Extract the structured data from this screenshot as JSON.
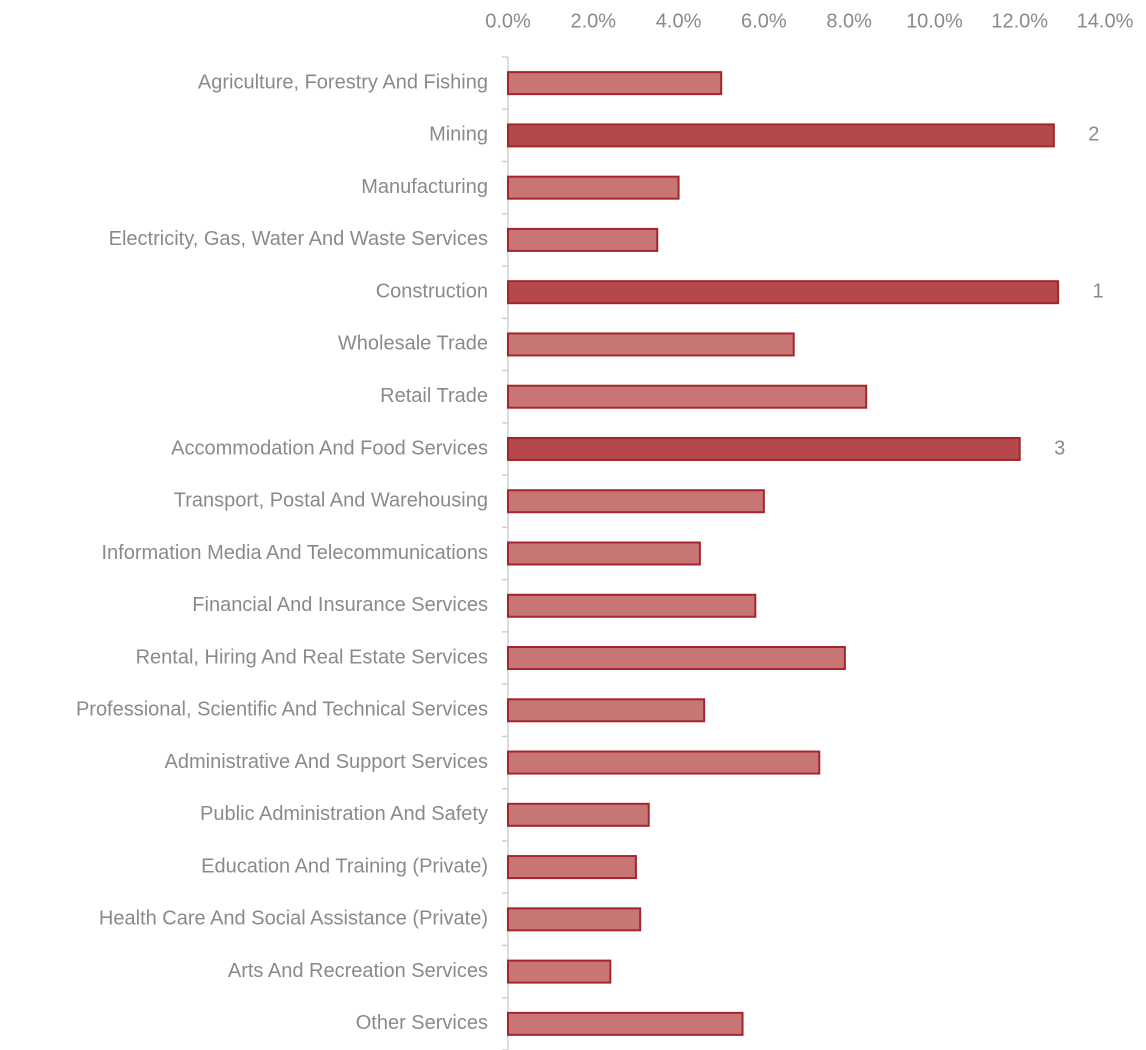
{
  "chart_data": {
    "type": "hbar",
    "categories": [
      "Agriculture, Forestry And Fishing",
      "Mining",
      "Manufacturing",
      "Electricity, Gas, Water And Waste Services",
      "Construction",
      "Wholesale Trade",
      "Retail Trade",
      "Accommodation And Food Services",
      "Transport, Postal And Warehousing",
      "Information Media And Telecommunications",
      "Financial And Insurance Services",
      "Rental, Hiring And Real Estate Services",
      "Professional, Scientific And Technical Services",
      "Administrative And Support Services",
      "Public Administration And Safety",
      "Education And Training (Private)",
      "Health Care And Social Assistance (Private)",
      "Arts And Recreation Services",
      "Other Services"
    ],
    "values": [
      5.0,
      12.8,
      4.0,
      3.5,
      12.9,
      6.7,
      8.4,
      12.0,
      6.0,
      4.5,
      5.8,
      7.9,
      4.6,
      7.3,
      3.3,
      3.0,
      3.1,
      2.4,
      5.5
    ],
    "rank_labels": [
      null,
      "2",
      null,
      null,
      "1",
      null,
      null,
      "3",
      null,
      null,
      null,
      null,
      null,
      null,
      null,
      null,
      null,
      null,
      null
    ],
    "colors": [
      "#c87575",
      "#b5484b",
      "#c87575",
      "#c87575",
      "#b5484b",
      "#c87575",
      "#c87575",
      "#b5484b",
      "#c87575",
      "#c87575",
      "#c87575",
      "#c87575",
      "#c87575",
      "#c87575",
      "#c87575",
      "#c87575",
      "#c87575",
      "#c87575",
      "#c87575"
    ],
    "border_color": "#a3262b",
    "xlim": [
      0,
      14
    ],
    "xticks": [
      {
        "value": 0,
        "label": "0.0%"
      },
      {
        "value": 2,
        "label": "2.0%"
      },
      {
        "value": 4,
        "label": "4.0%"
      },
      {
        "value": 6,
        "label": "6.0%"
      },
      {
        "value": 8,
        "label": "8.0%"
      },
      {
        "value": 10,
        "label": "10.0%"
      },
      {
        "value": 12,
        "label": "12.0%"
      },
      {
        "value": 14,
        "label": "14.0%"
      }
    ]
  }
}
